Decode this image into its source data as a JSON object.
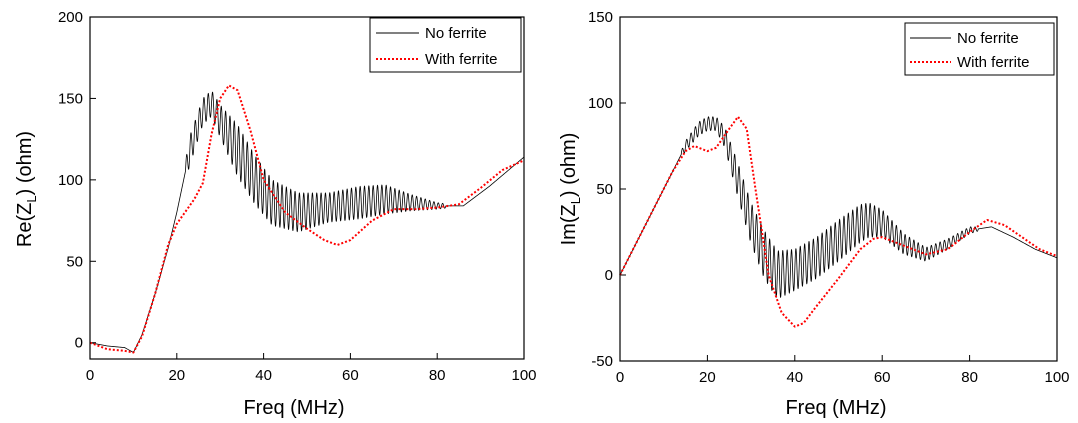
{
  "chart_data": [
    {
      "type": "line",
      "xlabel": "Freq (MHz)",
      "ylabel": "Re(Z",
      "ylabel_sub": "L",
      "ylabel_tail": ") (ohm)",
      "xlim": [
        0,
        100
      ],
      "ylim": [
        -10,
        200
      ],
      "xticks": [
        0,
        20,
        40,
        60,
        80,
        100
      ],
      "yticks": [
        0,
        50,
        100,
        150,
        200
      ],
      "legend_position": "top-right",
      "grid": false,
      "series": [
        {
          "name": "No ferrite",
          "color": "#000000",
          "style": "solid",
          "oscillation": {
            "period": 1.0,
            "from": 22,
            "to": 82
          },
          "x": [
            0,
            4,
            8,
            10,
            12,
            15,
            18,
            20,
            23,
            26,
            28,
            30,
            34,
            38,
            42,
            48,
            55,
            62,
            68,
            74,
            80,
            86,
            92,
            100
          ],
          "y": [
            0,
            -2,
            -3,
            -6,
            5,
            30,
            58,
            80,
            118,
            142,
            147,
            136,
            118,
            100,
            86,
            80,
            83,
            86,
            88,
            86,
            84,
            84,
            96,
            114
          ],
          "amp": [
            0,
            0,
            0,
            0,
            0,
            0,
            0,
            0,
            9,
            8,
            8,
            10,
            16,
            15,
            14,
            12,
            9,
            10,
            9,
            5,
            2,
            0,
            0,
            0
          ]
        },
        {
          "name": "With ferrite",
          "color": "#ff0000",
          "style": "dotted",
          "x": [
            0,
            4,
            8,
            10,
            12,
            15,
            18,
            20,
            24,
            26,
            28,
            30,
            32,
            34,
            37,
            40,
            45,
            50,
            54,
            57,
            60,
            65,
            70,
            75,
            80,
            85,
            90,
            95,
            100
          ],
          "y": [
            0,
            -4,
            -5,
            -6,
            4,
            30,
            60,
            73,
            88,
            98,
            128,
            150,
            158,
            155,
            130,
            100,
            80,
            70,
            63,
            60,
            63,
            75,
            82,
            82,
            83,
            85,
            95,
            106,
            112
          ]
        }
      ]
    },
    {
      "type": "line",
      "xlabel": "Freq (MHz)",
      "ylabel": "Im(Z",
      "ylabel_sub": "L",
      "ylabel_tail": ") (ohm)",
      "xlim": [
        0,
        100
      ],
      "ylim": [
        -50,
        150
      ],
      "xticks": [
        0,
        20,
        40,
        60,
        80,
        100
      ],
      "yticks": [
        -50,
        0,
        50,
        100,
        150
      ],
      "legend_position": "top-right",
      "grid": false,
      "series": [
        {
          "name": "No ferrite",
          "color": "#000000",
          "style": "solid",
          "oscillation": {
            "period": 1.0,
            "from": 14,
            "to": 82
          },
          "x": [
            0,
            4,
            8,
            12,
            15,
            18,
            20,
            22,
            24,
            27,
            30,
            33,
            36,
            40,
            45,
            50,
            55,
            57,
            60,
            65,
            70,
            75,
            80,
            85,
            90,
            95,
            100
          ],
          "y": [
            0,
            20,
            40,
            60,
            75,
            85,
            88,
            88,
            80,
            55,
            30,
            12,
            0,
            3,
            10,
            20,
            30,
            32,
            30,
            18,
            12,
            18,
            26,
            28,
            22,
            15,
            10
          ],
          "amp": [
            0,
            0,
            0,
            0,
            3,
            4,
            4,
            4,
            6,
            10,
            12,
            14,
            14,
            12,
            12,
            12,
            11,
            10,
            8,
            6,
            4,
            3,
            2,
            0,
            0,
            0,
            0
          ]
        },
        {
          "name": "With ferrite",
          "color": "#ff0000",
          "style": "dotted",
          "x": [
            0,
            4,
            8,
            12,
            15,
            17,
            20,
            22,
            25,
            27,
            29,
            31,
            34,
            37,
            40,
            42,
            45,
            50,
            55,
            58,
            60,
            65,
            70,
            75,
            80,
            84,
            88,
            92,
            96,
            100
          ],
          "y": [
            0,
            20,
            40,
            60,
            72,
            75,
            72,
            74,
            85,
            92,
            85,
            50,
            0,
            -22,
            -30,
            -28,
            -18,
            -2,
            15,
            21,
            22,
            17,
            12,
            15,
            25,
            32,
            29,
            22,
            15,
            11
          ]
        }
      ]
    }
  ]
}
